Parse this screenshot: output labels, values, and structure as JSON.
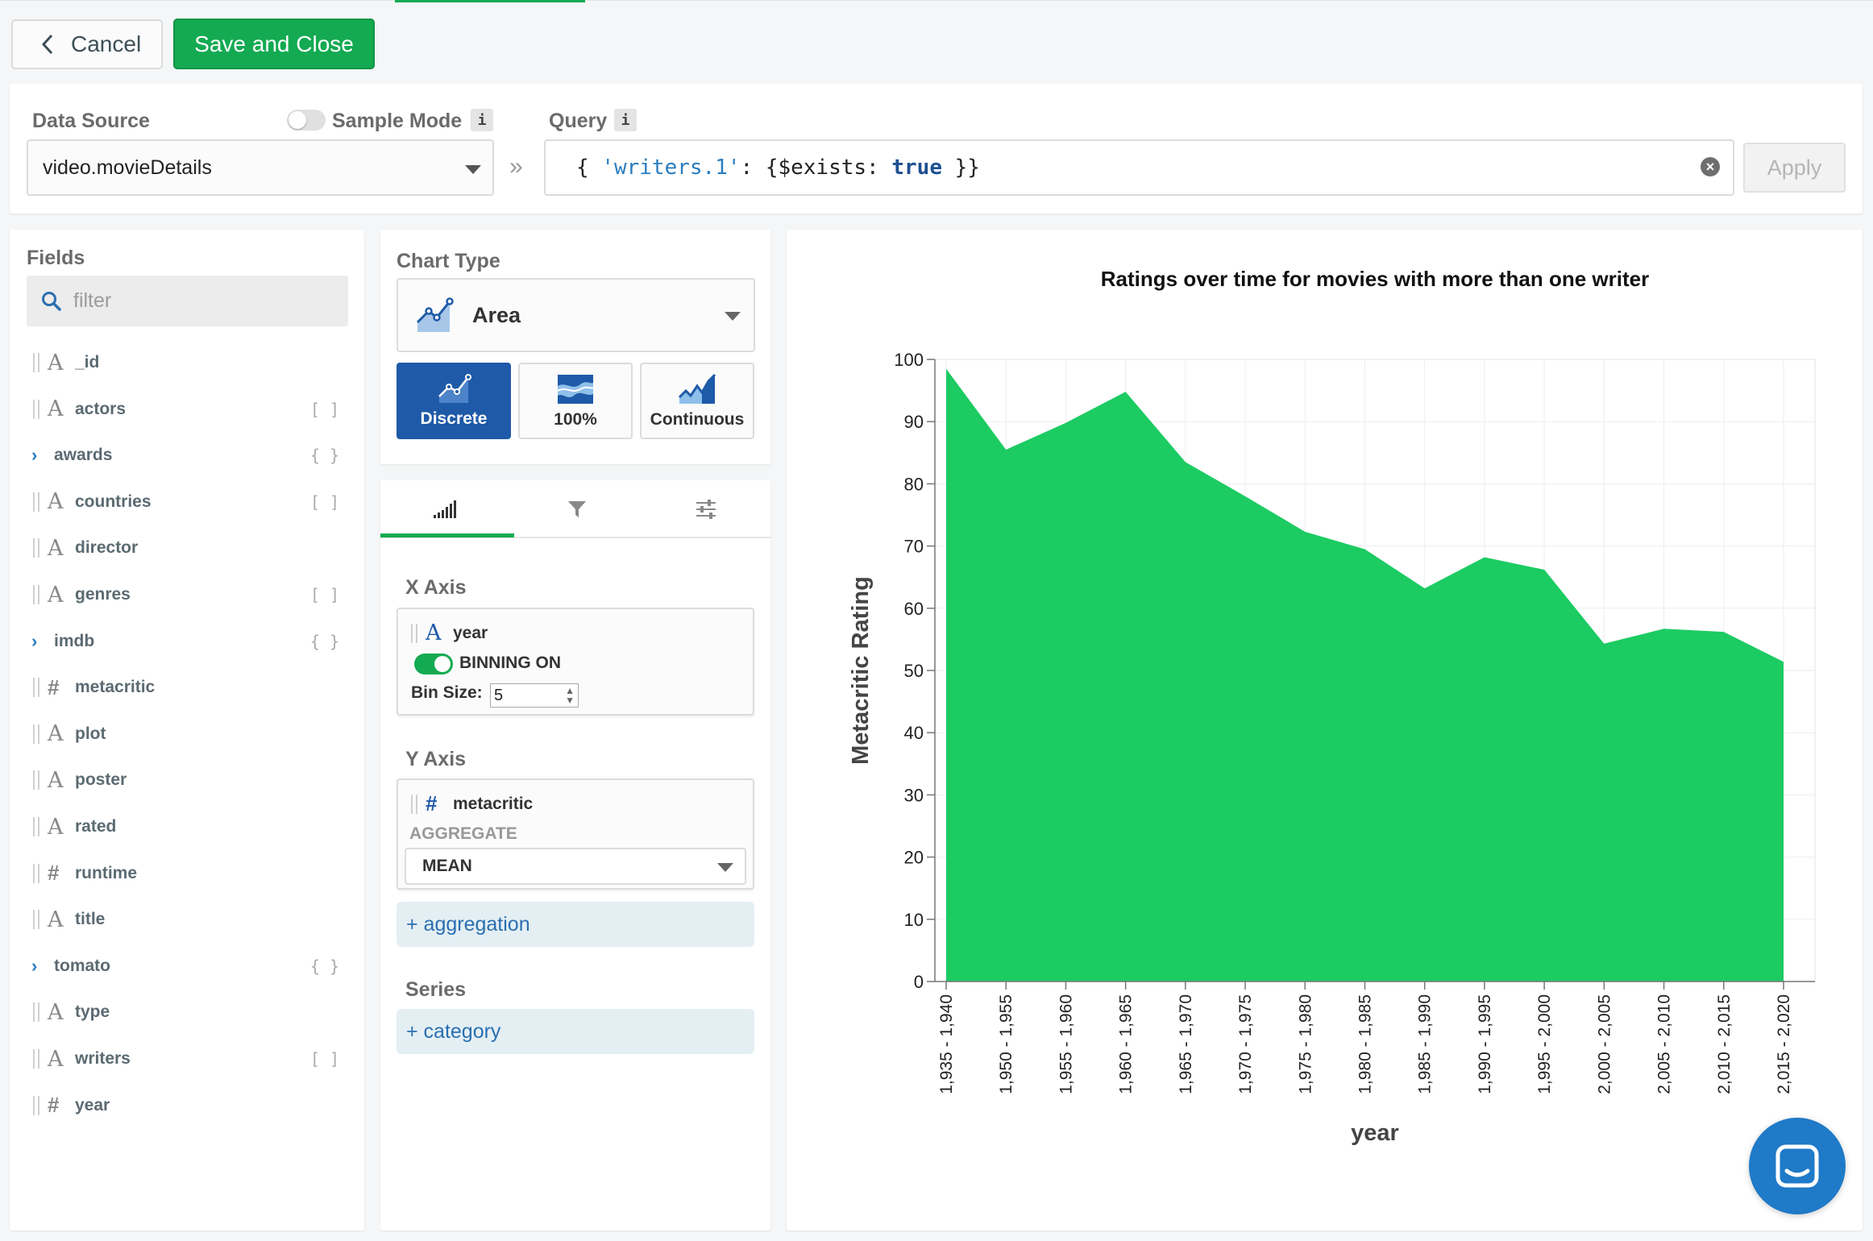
{
  "toolbar": {
    "cancel_label": "Cancel",
    "save_label": "Save and Close"
  },
  "data_source": {
    "label": "Data Source",
    "selected": "video.movieDetails",
    "sample_mode_label": "Sample Mode",
    "sample_mode_on": false,
    "info_glyph": "i"
  },
  "query": {
    "label": "Query",
    "open": "{",
    "key": "'writers.1'",
    "colon": ":",
    "inner_open": "{$exists:",
    "value": "true",
    "close": "}}",
    "apply_label": "Apply"
  },
  "fields": {
    "title": "Fields",
    "filter_placeholder": "filter",
    "items": [
      {
        "name": "_id",
        "type": "string",
        "suffix": ""
      },
      {
        "name": "actors",
        "type": "string",
        "suffix": "[ ]"
      },
      {
        "name": "awards",
        "type": "object",
        "suffix": "{ }"
      },
      {
        "name": "countries",
        "type": "string",
        "suffix": "[ ]"
      },
      {
        "name": "director",
        "type": "string",
        "suffix": ""
      },
      {
        "name": "genres",
        "type": "string",
        "suffix": "[ ]"
      },
      {
        "name": "imdb",
        "type": "object",
        "suffix": "{ }"
      },
      {
        "name": "metacritic",
        "type": "number",
        "suffix": ""
      },
      {
        "name": "plot",
        "type": "string",
        "suffix": ""
      },
      {
        "name": "poster",
        "type": "string",
        "suffix": ""
      },
      {
        "name": "rated",
        "type": "string",
        "suffix": ""
      },
      {
        "name": "runtime",
        "type": "number",
        "suffix": ""
      },
      {
        "name": "title",
        "type": "string",
        "suffix": ""
      },
      {
        "name": "tomato",
        "type": "object",
        "suffix": "{ }"
      },
      {
        "name": "type",
        "type": "string",
        "suffix": ""
      },
      {
        "name": "writers",
        "type": "string",
        "suffix": "[ ]"
      },
      {
        "name": "year",
        "type": "number",
        "suffix": ""
      }
    ]
  },
  "chart_type": {
    "label": "Chart Type",
    "selected": "Area",
    "variants": [
      {
        "label": "Discrete",
        "active": true
      },
      {
        "label": "100%",
        "active": false
      },
      {
        "label": "Continuous",
        "active": false
      }
    ]
  },
  "encode": {
    "x_axis": {
      "title": "X Axis",
      "field": "year",
      "binning_label": "BINNING ON",
      "binning_on": true,
      "bin_size_label": "Bin Size:",
      "bin_size": "5"
    },
    "y_axis": {
      "title": "Y Axis",
      "field": "metacritic",
      "aggregate_label": "AGGREGATE",
      "aggregate": "MEAN",
      "add_label": "+ aggregation"
    },
    "series": {
      "title": "Series",
      "add_label": "+ category"
    }
  },
  "colors": {
    "accent": "#13aa52",
    "area": "#1ccb62",
    "primary_blue": "#1e5aa8"
  },
  "chart_data": {
    "type": "area",
    "title": "Ratings over time for movies with more than one writer",
    "xlabel": "year",
    "ylabel": "Metacritic Rating",
    "ylim": [
      0,
      100
    ],
    "yticks": [
      0,
      10,
      20,
      30,
      40,
      50,
      60,
      70,
      80,
      90,
      100
    ],
    "grid": true,
    "categories": [
      "1,935 - 1,940",
      "1,950 - 1,955",
      "1,955 - 1,960",
      "1,960 - 1,965",
      "1,965 - 1,970",
      "1,970 - 1,975",
      "1,975 - 1,980",
      "1,980 - 1,985",
      "1,985 - 1,990",
      "1,990 - 1,995",
      "1,995 - 2,000",
      "2,000 - 2,005",
      "2,005 - 2,010",
      "2,010 - 2,015",
      "2,015 - 2,020"
    ],
    "values": [
      98.5,
      85.5,
      89.8,
      94.8,
      83.5,
      78.0,
      72.3,
      69.5,
      63.2,
      68.2,
      66.2,
      54.3,
      56.7,
      56.2,
      51.4
    ]
  }
}
